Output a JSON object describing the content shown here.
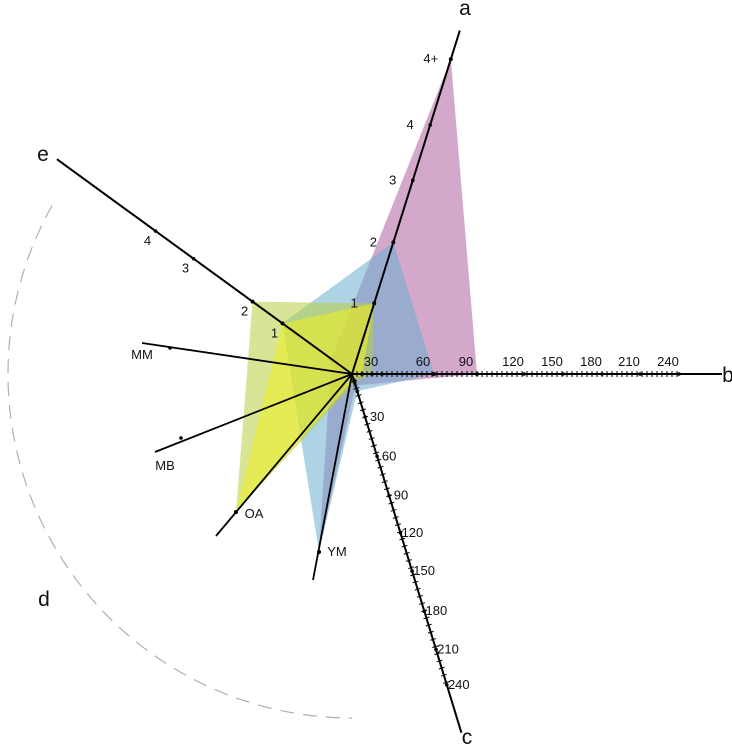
{
  "chart_data": {
    "type": "radar",
    "axes": [
      {
        "id": "a",
        "title": "a",
        "ticks": [
          "1",
          "2",
          "3",
          "4",
          "4+"
        ]
      },
      {
        "id": "b",
        "title": "b",
        "ticks": [
          "30",
          "60",
          "90",
          "120",
          "150",
          "180",
          "210",
          "240"
        ]
      },
      {
        "id": "c",
        "title": "c",
        "ticks": [
          "30",
          "60",
          "90",
          "120",
          "150",
          "180",
          "210",
          "240"
        ]
      },
      {
        "id": "d",
        "title": "d",
        "categories": [
          "OA",
          "YM",
          "MB",
          "MM"
        ]
      },
      {
        "id": "e",
        "title": "e",
        "ticks": [
          "1",
          "2",
          "3",
          "4"
        ]
      }
    ],
    "polygons": [
      {
        "color": "#b060a0",
        "a": "4+",
        "b": 90,
        "c": 8,
        "d": "YM",
        "e": 0.3
      },
      {
        "color": "#6aaed0",
        "a": 2,
        "b": 60,
        "c": 12,
        "d": "YM",
        "e": 1
      },
      {
        "color": "#b8d040",
        "a": 1,
        "b": 20,
        "c": 6,
        "d": "OA",
        "e": 2
      },
      {
        "color": "#f0f020",
        "a": 1,
        "b": 10,
        "c": 4,
        "d": "OA",
        "e": 1
      }
    ]
  }
}
